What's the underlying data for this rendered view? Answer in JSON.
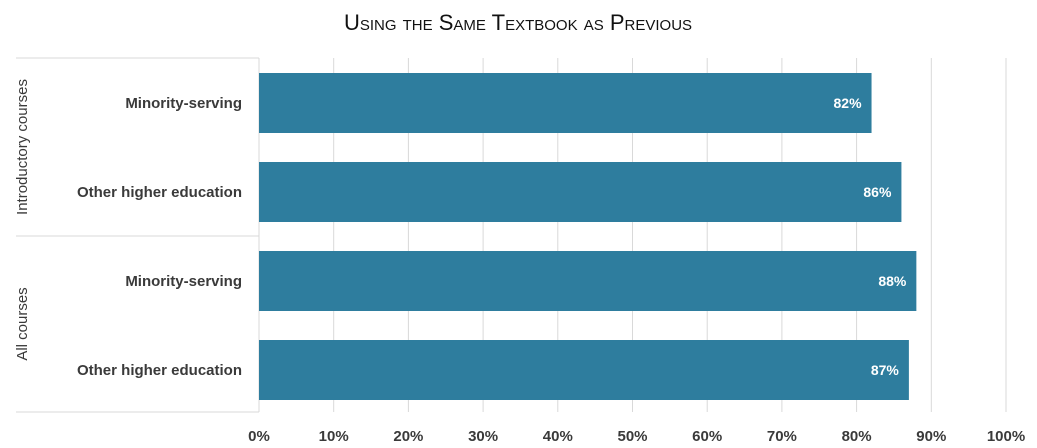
{
  "chart_data": {
    "type": "bar",
    "orientation": "horizontal",
    "title": "Using the Same Textbook as Previous",
    "groups": [
      {
        "label": "Introductory courses",
        "categories": [
          "Minority-serving",
          "Other higher education"
        ],
        "values": [
          82,
          86
        ],
        "data_labels": [
          "82%",
          "86%"
        ]
      },
      {
        "label": "All courses",
        "categories": [
          "Minority-serving",
          "Other higher education"
        ],
        "values": [
          88,
          87
        ],
        "data_labels": [
          "88%",
          "87%"
        ]
      }
    ],
    "xlim": [
      0,
      100
    ],
    "xticks": [
      "0%",
      "10%",
      "20%",
      "30%",
      "40%",
      "50%",
      "60%",
      "70%",
      "80%",
      "90%",
      "100%"
    ],
    "grid": true,
    "legend": "none"
  },
  "colors": {
    "bar": "#2e7d9e",
    "grid": "#d9d9d9",
    "text": "#3a3a3a",
    "data_label": "#ffffff"
  }
}
